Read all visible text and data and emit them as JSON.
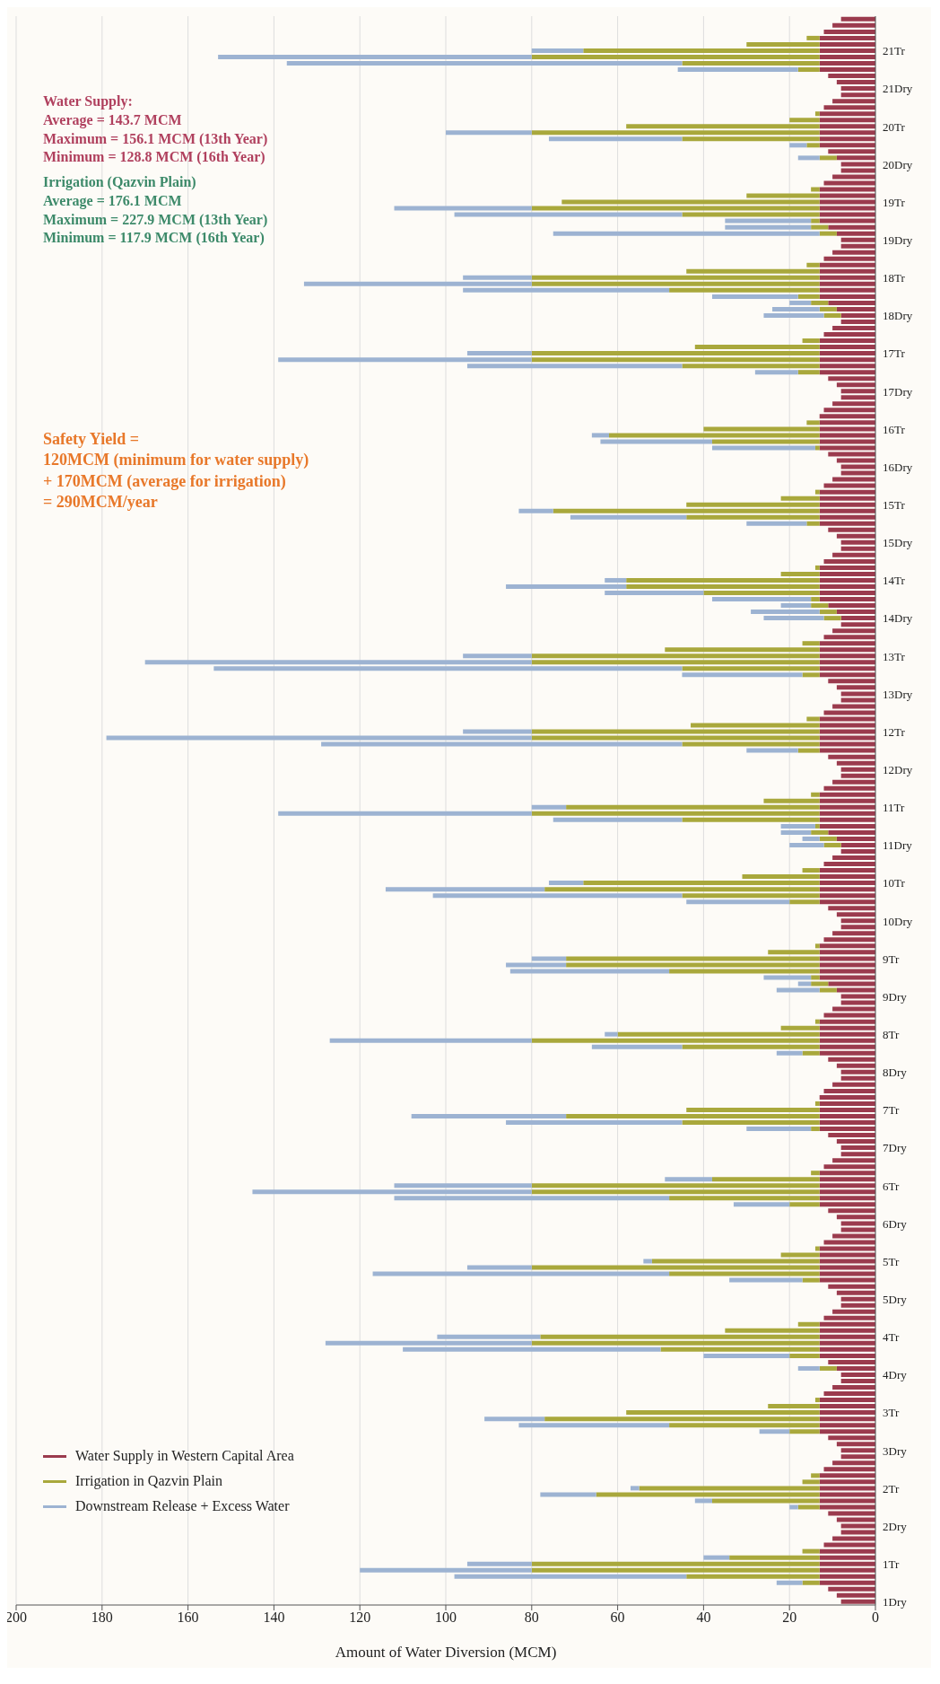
{
  "chart_data": {
    "type": "bar",
    "orientation": "horizontal",
    "stacked": true,
    "xlabel": "Amount of Water Diversion (MCM)",
    "xlim": [
      200,
      0
    ],
    "xticks": [
      0,
      20,
      40,
      60,
      80,
      100,
      120,
      140,
      160,
      180,
      200
    ],
    "grid": "x",
    "legend": "bottom left",
    "categories": [
      null,
      null,
      null,
      null,
      null,
      "21Tr",
      null,
      null,
      null,
      null,
      null,
      "21Dry",
      null,
      null,
      null,
      null,
      null,
      "20Tr",
      null,
      null,
      null,
      null,
      null,
      "20Dry",
      null,
      null,
      null,
      null,
      null,
      "19Tr",
      null,
      null,
      null,
      null,
      null,
      "19Dry",
      null,
      null,
      null,
      null,
      null,
      "18Tr",
      null,
      null,
      null,
      null,
      null,
      "18Dry",
      null,
      null,
      null,
      null,
      null,
      "17Tr",
      null,
      null,
      null,
      null,
      null,
      "17Dry",
      null,
      null,
      null,
      null,
      null,
      "16Tr",
      null,
      null,
      null,
      null,
      null,
      "16Dry",
      null,
      null,
      null,
      null,
      null,
      "15Tr",
      null,
      null,
      null,
      null,
      null,
      "15Dry",
      null,
      null,
      null,
      null,
      null,
      "14Tr",
      null,
      null,
      null,
      null,
      null,
      "14Dry",
      null,
      null,
      null,
      null,
      null,
      "13Tr",
      null,
      null,
      null,
      null,
      null,
      "13Dry",
      null,
      null,
      null,
      null,
      null,
      "12Tr",
      null,
      null,
      null,
      null,
      null,
      "12Dry",
      null,
      null,
      null,
      null,
      null,
      "11Tr",
      null,
      null,
      null,
      null,
      null,
      "11Dry",
      null,
      null,
      null,
      null,
      null,
      "10Tr",
      null,
      null,
      null,
      null,
      null,
      "10Dry",
      null,
      null,
      null,
      null,
      null,
      "9Tr",
      null,
      null,
      null,
      null,
      null,
      "9Dry",
      null,
      null,
      null,
      null,
      null,
      "8Tr",
      null,
      null,
      null,
      null,
      null,
      "8Dry",
      null,
      null,
      null,
      null,
      null,
      "7Tr",
      null,
      null,
      null,
      null,
      null,
      "7Dry",
      null,
      null,
      null,
      null,
      null,
      "6Tr",
      null,
      null,
      null,
      null,
      null,
      "6Dry",
      null,
      null,
      null,
      null,
      null,
      "5Tr",
      null,
      null,
      null,
      null,
      null,
      "5Dry",
      null,
      null,
      null,
      null,
      null,
      "4Tr",
      null,
      null,
      null,
      null,
      null,
      "4Dry",
      null,
      null,
      null,
      null,
      null,
      "3Tr",
      null,
      null,
      null,
      null,
      null,
      "3Dry",
      null,
      null,
      null,
      null,
      null,
      "2Tr",
      null,
      null,
      null,
      null,
      null,
      "2Dry",
      null,
      null,
      null,
      null,
      null,
      "1Tr",
      null,
      null,
      null,
      null,
      null,
      "1Dry"
    ],
    "series": [
      {
        "name": "Water Supply in Western Capital Area",
        "color": "#9b3b4e",
        "values": [
          8,
          10,
          12,
          13,
          13,
          13,
          13,
          13,
          13,
          11,
          9,
          8,
          8,
          10,
          12,
          13,
          13,
          13,
          13,
          13,
          13,
          11,
          9,
          8,
          8,
          10,
          12,
          13,
          13,
          13,
          13,
          13,
          13,
          11,
          9,
          8,
          8,
          10,
          12,
          13,
          13,
          13,
          13,
          13,
          13,
          11,
          9,
          8,
          8,
          10,
          12,
          13,
          13,
          13,
          13,
          13,
          13,
          11,
          9,
          8,
          8,
          10,
          12,
          13,
          13,
          13,
          13,
          13,
          13,
          11,
          9,
          8,
          8,
          10,
          12,
          13,
          13,
          13,
          13,
          13,
          13,
          11,
          9,
          8,
          8,
          10,
          12,
          13,
          13,
          13,
          13,
          13,
          13,
          11,
          9,
          8,
          8,
          10,
          12,
          13,
          13,
          13,
          13,
          13,
          13,
          11,
          9,
          8,
          8,
          10,
          12,
          13,
          13,
          13,
          13,
          13,
          13,
          11,
          9,
          8,
          8,
          10,
          12,
          13,
          13,
          13,
          13,
          13,
          13,
          11,
          9,
          8,
          8,
          10,
          12,
          13,
          13,
          13,
          13,
          13,
          13,
          11,
          9,
          8,
          8,
          10,
          12,
          13,
          13,
          13,
          13,
          13,
          13,
          11,
          9,
          8,
          8,
          10,
          12,
          13,
          13,
          13,
          13,
          13,
          13,
          11,
          9,
          8,
          8,
          10,
          12,
          13,
          13,
          13,
          13,
          13,
          13,
          11,
          9,
          8,
          8,
          10,
          12,
          13,
          13,
          13,
          13,
          13,
          13,
          11,
          9,
          8,
          8,
          10,
          12,
          13,
          13,
          13,
          13,
          13,
          13,
          11,
          9,
          8,
          8,
          10,
          12,
          13,
          13,
          13,
          13,
          13,
          13,
          11,
          9,
          8,
          8,
          10,
          12,
          13,
          13,
          13,
          13,
          13,
          13,
          11,
          9,
          8,
          8,
          10,
          12,
          13,
          13,
          13,
          13,
          13,
          13,
          11,
          9,
          8,
          8,
          10,
          12,
          13,
          13,
          13,
          13,
          13,
          13,
          11,
          9,
          8
        ]
      },
      {
        "name": "Irrigation in Qazvin Plain",
        "color": "#a9a83c",
        "values": [
          0,
          0,
          0,
          3,
          17,
          55,
          67,
          32,
          5,
          0,
          0,
          0,
          0,
          0,
          0,
          1,
          7,
          45,
          67,
          32,
          3,
          0,
          4,
          0,
          0,
          0,
          0,
          2,
          17,
          60,
          67,
          32,
          2,
          4,
          4,
          0,
          0,
          0,
          0,
          3,
          31,
          67,
          67,
          35,
          5,
          4,
          4,
          4,
          0,
          0,
          0,
          4,
          29,
          67,
          67,
          32,
          5,
          0,
          0,
          0,
          0,
          0,
          0,
          0,
          3,
          27,
          49,
          25,
          1,
          0,
          0,
          0,
          0,
          0,
          0,
          1,
          9,
          31,
          62,
          31,
          3,
          0,
          0,
          0,
          0,
          0,
          0,
          1,
          9,
          45,
          45,
          27,
          2,
          4,
          4,
          4,
          0,
          0,
          0,
          4,
          36,
          67,
          67,
          32,
          4,
          0,
          0,
          0,
          0,
          0,
          0,
          3,
          30,
          67,
          67,
          32,
          5,
          0,
          0,
          0,
          0,
          0,
          0,
          2,
          13,
          59,
          67,
          32,
          1,
          4,
          4,
          4,
          0,
          0,
          0,
          4,
          18,
          55,
          64,
          32,
          7,
          0,
          0,
          0,
          0,
          0,
          0,
          1,
          12,
          59,
          59,
          35,
          2,
          4,
          4,
          0,
          0,
          0,
          0,
          1,
          9,
          47,
          67,
          32,
          4,
          0,
          0,
          0,
          0,
          0,
          0,
          0,
          1,
          31,
          59,
          32,
          2,
          0,
          0,
          0,
          0,
          0,
          0,
          2,
          25,
          67,
          67,
          35,
          7,
          0,
          0,
          0,
          0,
          0,
          0,
          1,
          9,
          39,
          67,
          35,
          4,
          0,
          0,
          0,
          0,
          0,
          0,
          5,
          22,
          65,
          67,
          37,
          7,
          0,
          4,
          0,
          0,
          0,
          0,
          1,
          12,
          45,
          64,
          35,
          7,
          0,
          0,
          0,
          0,
          0,
          0,
          2,
          4,
          42,
          52,
          25,
          5,
          0,
          0,
          0,
          0,
          0,
          0,
          4,
          21,
          67,
          67,
          31,
          4,
          0,
          0,
          0
        ]
      },
      {
        "name": "Downstream Release + Excess Water",
        "color": "#9db3d2",
        "values": [
          0,
          0,
          0,
          0,
          0,
          12,
          73,
          92,
          28,
          0,
          0,
          0,
          0,
          0,
          0,
          0,
          0,
          0,
          20,
          31,
          4,
          0,
          5,
          0,
          0,
          0,
          0,
          0,
          0,
          0,
          32,
          53,
          20,
          20,
          62,
          0,
          0,
          0,
          0,
          0,
          0,
          16,
          53,
          48,
          20,
          5,
          11,
          14,
          0,
          0,
          0,
          0,
          0,
          15,
          59,
          50,
          10,
          0,
          0,
          0,
          0,
          0,
          0,
          0,
          0,
          0,
          4,
          26,
          24,
          0,
          0,
          0,
          0,
          0,
          0,
          0,
          0,
          0,
          8,
          27,
          14,
          0,
          0,
          0,
          0,
          0,
          0,
          0,
          0,
          5,
          28,
          23,
          23,
          7,
          16,
          14,
          0,
          0,
          0,
          0,
          0,
          16,
          90,
          109,
          28,
          0,
          0,
          0,
          0,
          0,
          0,
          0,
          0,
          16,
          99,
          84,
          12,
          0,
          0,
          0,
          0,
          0,
          0,
          0,
          0,
          8,
          59,
          30,
          8,
          7,
          4,
          8,
          0,
          0,
          0,
          0,
          0,
          8,
          37,
          58,
          24,
          0,
          0,
          0,
          0,
          0,
          0,
          0,
          0,
          8,
          14,
          37,
          11,
          3,
          10,
          0,
          0,
          0,
          0,
          0,
          0,
          3,
          47,
          21,
          6,
          0,
          0,
          0,
          0,
          0,
          0,
          0,
          0,
          0,
          36,
          41,
          15,
          0,
          0,
          0,
          0,
          0,
          0,
          0,
          11,
          32,
          65,
          64,
          13,
          0,
          0,
          0,
          0,
          0,
          0,
          0,
          0,
          2,
          15,
          69,
          17,
          0,
          0,
          0,
          0,
          0,
          0,
          0,
          0,
          24,
          48,
          60,
          20,
          0,
          5,
          0,
          0,
          0,
          0,
          0,
          0,
          0,
          14,
          35,
          7,
          0,
          0,
          0,
          0,
          0,
          0,
          0,
          0,
          2,
          13,
          4,
          2,
          0,
          0,
          0,
          0,
          0,
          0,
          0,
          6,
          15,
          40,
          54,
          6,
          0,
          0,
          0
        ]
      }
    ],
    "annotations": [
      "Water Supply:\nAverage = 143.7 MCM\nMaximum = 156.1 MCM (13th Year)\nMinimum = 128.8 MCM (16th Year)",
      "Irrigation (Qazvin Plain)\nAverage = 176.1 MCM\nMaximum = 227.9 MCM (13th Year)\nMinimum = 117.9 MCM (16th Year)",
      "Safety Yield =\n120MCM (minimum for water supply)\n+ 170MCM (average for irrigation)\n= 290MCM/year"
    ]
  }
}
